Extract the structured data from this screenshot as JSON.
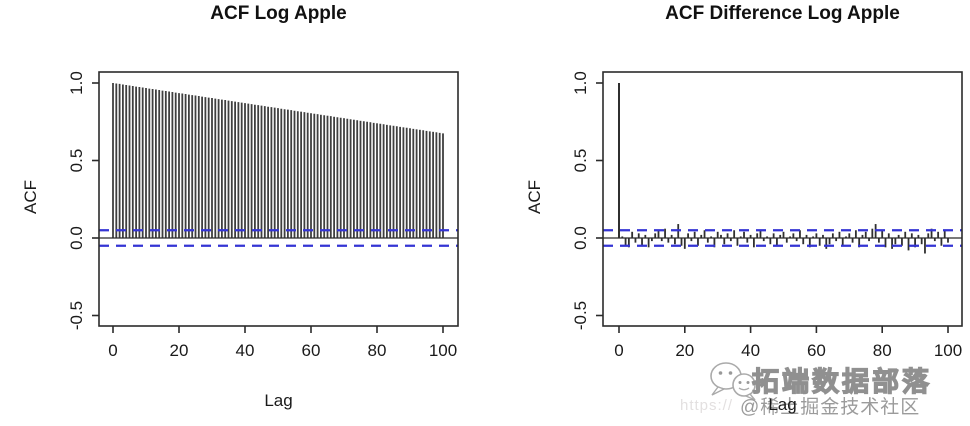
{
  "page": {
    "background": "#ffffff"
  },
  "chart_data": [
    {
      "type": "bar",
      "name": "acf-log-apple",
      "title": "ACF Log Apple",
      "xlabel": "Lag",
      "ylabel": "ACF",
      "xticks": [
        0,
        20,
        40,
        60,
        80,
        100
      ],
      "yticks": [
        1.0,
        0.5,
        0.0,
        -0.5
      ],
      "xlim": [
        -4,
        104
      ],
      "ylim": [
        -0.57,
        1.07
      ],
      "grid": false,
      "legend": null,
      "conf_interval": 0.05,
      "conf_color": "#3434d4",
      "bar_color": "#3f3f3f",
      "axis_color": "#2b2b2b",
      "lags": "0 to 100 step 1",
      "values": [
        1.0,
        0.997,
        0.994,
        0.99,
        0.987,
        0.984,
        0.981,
        0.977,
        0.974,
        0.971,
        0.968,
        0.964,
        0.961,
        0.958,
        0.955,
        0.951,
        0.948,
        0.945,
        0.942,
        0.938,
        0.935,
        0.932,
        0.929,
        0.925,
        0.922,
        0.919,
        0.916,
        0.912,
        0.909,
        0.906,
        0.903,
        0.899,
        0.896,
        0.893,
        0.89,
        0.886,
        0.883,
        0.88,
        0.877,
        0.873,
        0.87,
        0.867,
        0.864,
        0.86,
        0.857,
        0.854,
        0.851,
        0.847,
        0.844,
        0.841,
        0.838,
        0.834,
        0.831,
        0.828,
        0.825,
        0.821,
        0.818,
        0.815,
        0.812,
        0.808,
        0.805,
        0.802,
        0.799,
        0.795,
        0.792,
        0.789,
        0.786,
        0.782,
        0.779,
        0.776,
        0.773,
        0.769,
        0.766,
        0.763,
        0.76,
        0.756,
        0.753,
        0.75,
        0.747,
        0.743,
        0.74,
        0.737,
        0.734,
        0.73,
        0.727,
        0.724,
        0.721,
        0.717,
        0.714,
        0.711,
        0.708,
        0.704,
        0.701,
        0.698,
        0.695,
        0.691,
        0.688,
        0.685,
        0.682,
        0.678,
        0.675
      ]
    },
    {
      "type": "bar",
      "name": "acf-difference-log-apple",
      "title": "ACF Difference Log Apple",
      "xlabel": "Lag",
      "ylabel": "ACF",
      "xticks": [
        0,
        20,
        40,
        60,
        80,
        100
      ],
      "yticks": [
        1.0,
        0.5,
        0.0,
        -0.5
      ],
      "xlim": [
        -4,
        104
      ],
      "ylim": [
        -0.57,
        1.07
      ],
      "grid": false,
      "legend": null,
      "conf_interval": 0.05,
      "conf_color": "#3434d4",
      "bar_color": "#2f2f2f",
      "axis_color": "#2b2b2b",
      "lags": "0 to 100 step 1",
      "values": [
        1.0,
        0.01,
        -0.05,
        -0.06,
        0.04,
        -0.03,
        0.03,
        -0.05,
        0.02,
        -0.06,
        -0.02,
        0.03,
        0.05,
        -0.02,
        0.06,
        -0.03,
        0.02,
        -0.04,
        0.09,
        -0.05,
        -0.07,
        0.03,
        -0.02,
        0.04,
        -0.05,
        0.02,
        0.05,
        -0.03,
        0.01,
        -0.06,
        0.04,
        0.02,
        -0.04,
        0.03,
        -0.02,
        0.05,
        -0.05,
        0.01,
        0.04,
        -0.03,
        0.02,
        -0.06,
        0.03,
        0.05,
        -0.02,
        0.01,
        -0.04,
        0.03,
        -0.05,
        0.02,
        0.04,
        -0.03,
        0.01,
        0.03,
        -0.02,
        0.05,
        -0.04,
        0.02,
        -0.06,
        0.01,
        0.03,
        -0.05,
        0.02,
        -0.07,
        -0.04,
        0.03,
        -0.02,
        0.04,
        -0.05,
        0.01,
        0.03,
        -0.03,
        0.05,
        -0.06,
        0.02,
        0.04,
        -0.02,
        0.06,
        0.09,
        -0.03,
        0.05,
        -0.06,
        0.03,
        -0.07,
        -0.04,
        0.02,
        -0.05,
        0.04,
        -0.08,
        0.03,
        -0.06,
        0.02,
        -0.04,
        -0.1,
        0.03,
        0.06,
        -0.02,
        0.04,
        -0.05,
        0.05,
        -0.03
      ]
    }
  ],
  "watermark": {
    "icon": "wechat-icon",
    "brand": "拓端数据部落",
    "community": "@稀土掘金技术社区",
    "url_fragment": "https://"
  }
}
